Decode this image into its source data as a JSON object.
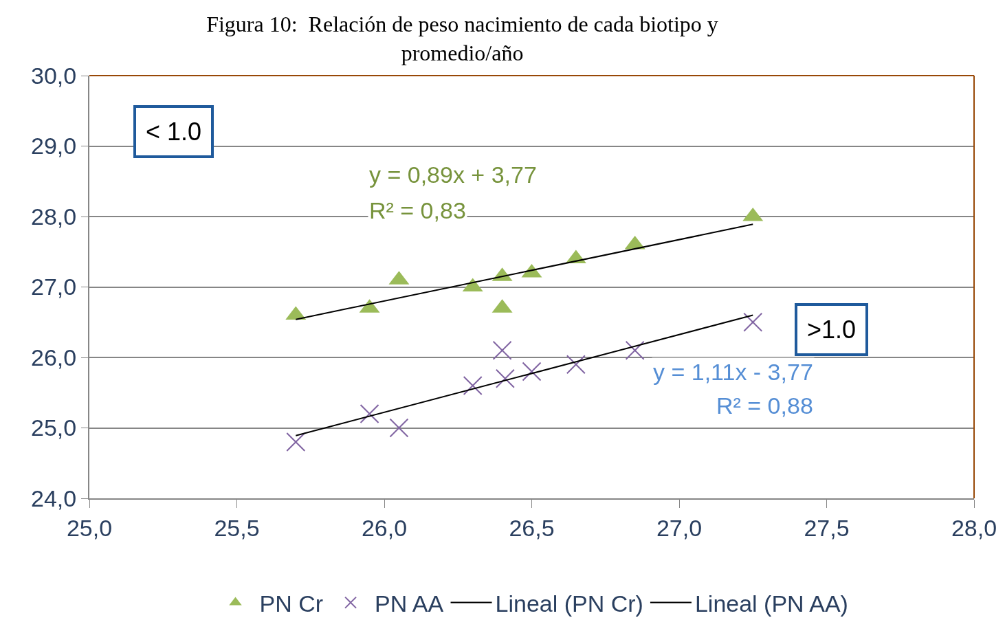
{
  "chart_data": {
    "type": "scatter",
    "title": "Figura 10:  Relación de peso nacimiento de cada biotipo y\npromedio/año",
    "xlim": [
      25,
      28
    ],
    "xticks": [
      {
        "value": 25,
        "label": "25,0"
      },
      {
        "value": 25.5,
        "label": "25,5"
      },
      {
        "value": 26,
        "label": "26,0"
      },
      {
        "value": 26.5,
        "label": "26,5"
      },
      {
        "value": 27,
        "label": "27,0"
      },
      {
        "value": 27.5,
        "label": "27,5"
      },
      {
        "value": 28,
        "label": "28,0"
      }
    ],
    "ylim": [
      24,
      30
    ],
    "yticks": [
      {
        "value": 24,
        "label": "24,0"
      },
      {
        "value": 25,
        "label": "25,0"
      },
      {
        "value": 26,
        "label": "26,0"
      },
      {
        "value": 27,
        "label": "27,0"
      },
      {
        "value": 28,
        "label": "28,0"
      },
      {
        "value": 29,
        "label": "29,0"
      },
      {
        "value": 30,
        "label": "30,0"
      }
    ],
    "grid": "y",
    "legend": "bottom",
    "series": [
      {
        "name": "PN Cr",
        "marker": "triangle",
        "color": "#9bbb59",
        "x": [
          25.7,
          25.95,
          26.05,
          26.3,
          26.4,
          26.4,
          26.5,
          26.65,
          26.85,
          27.25
        ],
        "values": [
          26.6,
          26.7,
          27.1,
          27.0,
          27.15,
          26.7,
          27.2,
          27.4,
          27.6,
          28.0
        ]
      },
      {
        "name": "PN AA",
        "marker": "cross",
        "color": "#8064a2",
        "x": [
          25.7,
          25.95,
          26.05,
          26.3,
          26.4,
          26.41,
          26.5,
          26.65,
          26.85,
          27.25
        ],
        "values": [
          24.8,
          25.2,
          25.0,
          25.6,
          26.1,
          25.7,
          25.8,
          25.9,
          26.1,
          26.5
        ]
      },
      {
        "name": "Lineal (PN Cr)",
        "type": "line",
        "marker": "none",
        "color": "#000000",
        "x": [
          25.7,
          27.25
        ],
        "values": [
          26.54,
          27.89
        ]
      },
      {
        "name": "Lineal (PN AA)",
        "type": "line",
        "marker": "none",
        "color": "#000000",
        "x": [
          25.7,
          27.25
        ],
        "values": [
          24.89,
          26.6
        ]
      }
    ],
    "annotations": [
      "< 1.0",
      ">1.0",
      "y = 0,89x + 3,77",
      "R² = 0,83",
      "y = 1,11x - 3,77",
      "R² = 0,88"
    ]
  }
}
